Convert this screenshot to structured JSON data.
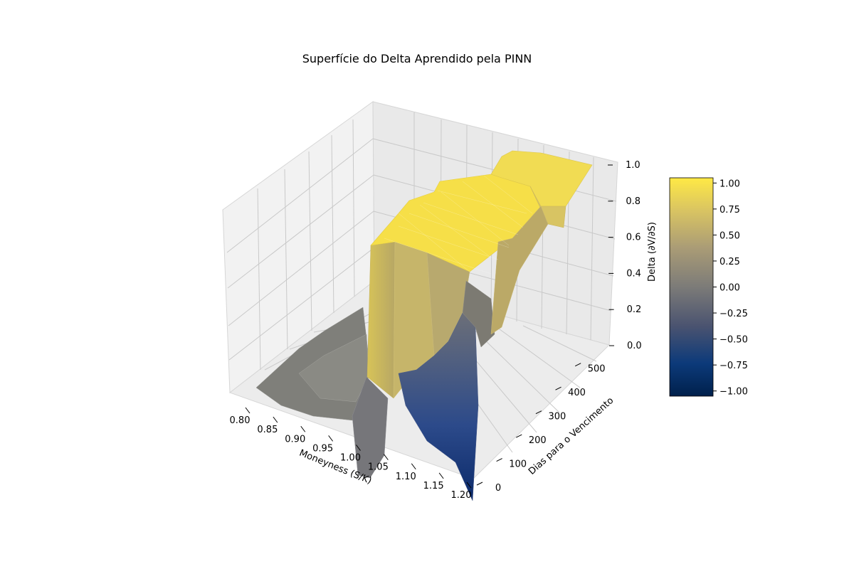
{
  "chart_data": {
    "type": "surface3d",
    "title": "Superfície do Delta Aprendido pela PINN",
    "xlabel": "Moneyness (S/K)",
    "ylabel": "Dias para o Vencimento",
    "zlabel": "Delta (∂V/∂S)",
    "xlim": [
      0.8,
      1.2
    ],
    "ylim": [
      0,
      550
    ],
    "zlim": [
      0,
      1
    ],
    "xticks": [
      "0.80",
      "0.85",
      "0.90",
      "0.95",
      "1.00",
      "1.05",
      "1.10",
      "1.15",
      "1.20"
    ],
    "yticks": [
      "0",
      "100",
      "200",
      "300",
      "400",
      "500"
    ],
    "zticks": [
      "0.0",
      "0.2",
      "0.4",
      "0.6",
      "0.8",
      "1.0"
    ],
    "colormap": "cividis",
    "colorbar": {
      "range": [
        -1.05,
        1.05
      ],
      "ticks": [
        "1.00",
        "0.75",
        "0.50",
        "0.25",
        "0.00",
        "−0.25",
        "−0.50",
        "−0.75",
        "−1.00"
      ]
    },
    "grid": true,
    "surface_regions": [
      {
        "moneyness_range": [
          0.8,
          1.0
        ],
        "delta": 0.0
      },
      {
        "moneyness_range": [
          1.0,
          1.05
        ],
        "delta": 1.0
      },
      {
        "moneyness_range": [
          1.05,
          1.2
        ],
        "delta": [
          -1.0,
          0.5
        ]
      }
    ]
  }
}
